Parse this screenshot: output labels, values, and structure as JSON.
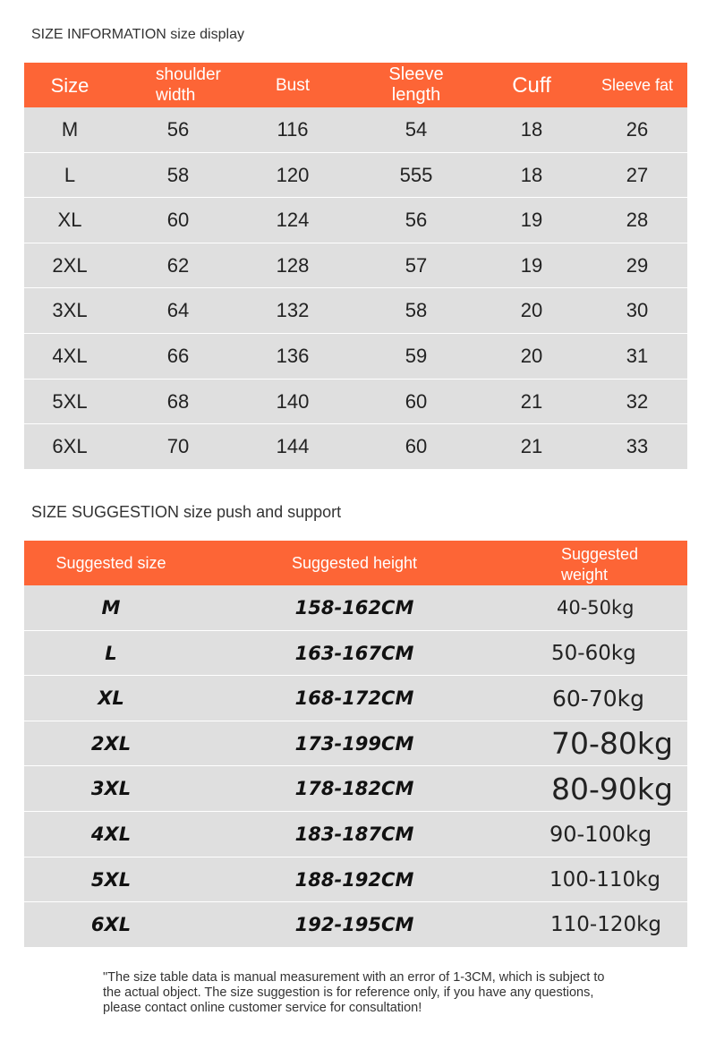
{
  "info": {
    "title": "SIZE INFORMATION size display",
    "headers": [
      "Size",
      "shoulder width",
      "Bust",
      "Sleeve length",
      "Cuff",
      "Sleeve fat"
    ],
    "rows": [
      [
        "M",
        "56",
        "116",
        "54",
        "18",
        "26"
      ],
      [
        "L",
        "58",
        "120",
        "555",
        "18",
        "27"
      ],
      [
        "XL",
        "60",
        "124",
        "56",
        "19",
        "28"
      ],
      [
        "2XL",
        "62",
        "128",
        "57",
        "19",
        "29"
      ],
      [
        "3XL",
        "64",
        "132",
        "58",
        "20",
        "30"
      ],
      [
        "4XL",
        "66",
        "136",
        "59",
        "20",
        "31"
      ],
      [
        "5XL",
        "68",
        "140",
        "60",
        "21",
        "32"
      ],
      [
        "6XL",
        "70",
        "144",
        "60",
        "21",
        "33"
      ]
    ]
  },
  "suggestion": {
    "title": "SIZE SUGGESTION size push and support",
    "headers": [
      "Suggested size",
      "Suggested height",
      "Suggested weight"
    ],
    "rows": [
      [
        "M",
        "158-162CM",
        "40-50kg"
      ],
      [
        "L",
        "163-167CM",
        "50-60kg"
      ],
      [
        "XL",
        "168-172CM",
        "60-70kg"
      ],
      [
        "2XL",
        "173-199CM",
        "70-80kg"
      ],
      [
        "3XL",
        "178-182CM",
        "80-90kg"
      ],
      [
        "4XL",
        "183-187CM",
        "90-100kg"
      ],
      [
        "5XL",
        "188-192CM",
        "100-110kg"
      ],
      [
        "6XL",
        "192-195CM",
        "110-120kg"
      ]
    ]
  },
  "note": "\"The size table data is manual measurement with an error of 1-3CM, which is subject to the actual object. The size suggestion is for reference only, if you have any questions, please contact online customer service for consultation!",
  "colors": {
    "header": "#fd6536",
    "row": "#dfdfdf"
  }
}
